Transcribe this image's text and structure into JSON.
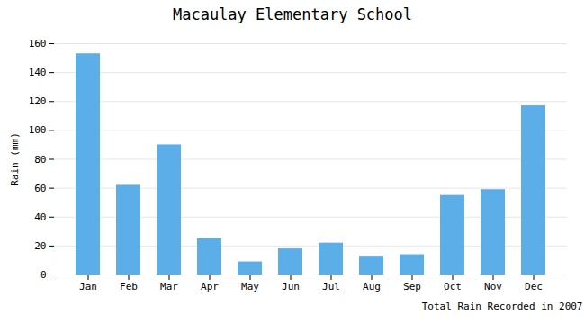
{
  "chart_data": {
    "type": "bar",
    "title": "Macaulay Elementary School",
    "xlabel": "Total Rain Recorded in 2007",
    "ylabel": "Rain (mm)",
    "categories": [
      "Jan",
      "Feb",
      "Mar",
      "Apr",
      "May",
      "Jun",
      "Jul",
      "Aug",
      "Sep",
      "Oct",
      "Nov",
      "Dec"
    ],
    "values": [
      153,
      62,
      90,
      25,
      9,
      18,
      22,
      13,
      14,
      55,
      59,
      117
    ],
    "color": "#5BAEE8",
    "ylim": [
      0,
      160
    ],
    "yticks": [
      0,
      20,
      40,
      60,
      80,
      100,
      120,
      140,
      160
    ],
    "grid": true
  }
}
